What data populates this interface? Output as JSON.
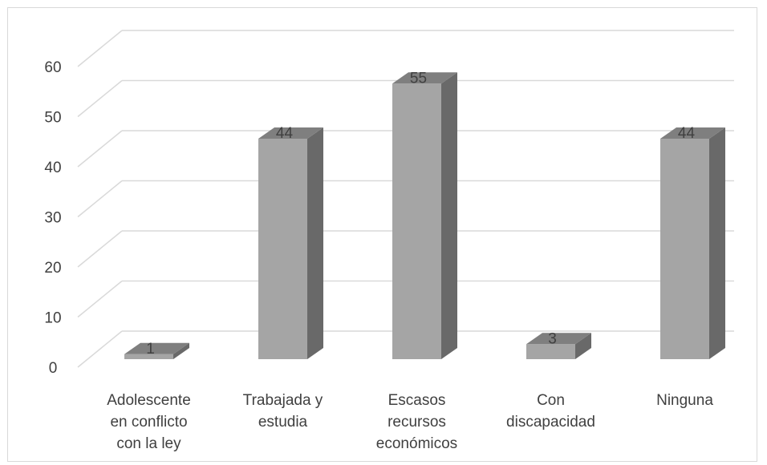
{
  "chart_data": {
    "type": "bar",
    "style": "3d-column",
    "categories": [
      [
        "Adolescente",
        "en conflicto",
        "con la ley"
      ],
      [
        "Trabajada y",
        "estudia"
      ],
      [
        "Escasos",
        "recursos",
        "económicos"
      ],
      [
        "Con",
        "discapacidad"
      ],
      [
        "Ninguna"
      ]
    ],
    "values": [
      1,
      44,
      55,
      3,
      44
    ],
    "data_labels": [
      "1",
      "44",
      "55",
      "3",
      "44"
    ],
    "yticks": [
      "0",
      "10",
      "20",
      "30",
      "40",
      "50",
      "60"
    ],
    "ylim": [
      0,
      60
    ],
    "grid": true,
    "legend": "none",
    "colors": {
      "bar_front": "#a5a5a5",
      "bar_top": "#7f7f7f",
      "bar_side": "#696969",
      "grid": "#d9d9d9",
      "text": "#404040"
    }
  }
}
